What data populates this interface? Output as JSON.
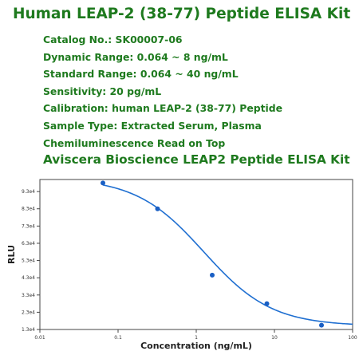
{
  "header": {
    "title": "Human LEAP-2 (38-77) Peptide ELISA Kit",
    "specs": [
      "Catalog No.: SK00007-06",
      "Dynamic Range: 0.064 ~ 8 ng/mL",
      "Standard Range: 0.064 ~ 40 ng/mL",
      "Sensitivity: 20 pg/mL",
      "Calibration: human LEAP-2 (38-77) Peptide",
      "Sample Type: Extracted Serum, Plasma",
      "Chemiluminescence Read on Top"
    ],
    "subtitle": "Aviscera Bioscience LEAP2 Peptide ELISA Kit"
  },
  "colors": {
    "title_green": "#1e7a1e",
    "curve": "#1f6fd1",
    "points": "#1a5fc4",
    "axis": "#444444"
  },
  "chart_data": {
    "type": "scatter",
    "title": "",
    "xlabel": "Concentration (ng/mL)",
    "ylabel": "RLU",
    "x_scale": "log",
    "xlim": [
      0.01,
      100
    ],
    "ylim": [
      13000,
      100000
    ],
    "x_ticks": [
      0.01,
      0.1,
      1,
      10,
      100
    ],
    "x_tick_labels": [
      "0.01",
      "0.1",
      "1",
      "10",
      "100"
    ],
    "y_ticks": [
      13000,
      23000,
      33000,
      43000,
      53000,
      63000,
      73000,
      83000,
      93000
    ],
    "y_tick_labels": [
      "1.3e4",
      "2.3e4",
      "3.3e4",
      "4.3e4",
      "5.3e4",
      "6.3e4",
      "7.3e4",
      "8.3e4",
      "9.3e4"
    ],
    "grid": false,
    "series": [
      {
        "points": [
          {
            "x": 0.064,
            "y": 98000
          },
          {
            "x": 0.32,
            "y": 83000
          },
          {
            "x": 1.6,
            "y": 44500
          },
          {
            "x": 8,
            "y": 28000
          },
          {
            "x": 40,
            "y": 15500
          }
        ],
        "fit_curve": {
          "model": "4PL",
          "top": 101000,
          "bottom": 15000,
          "ec50": 1.25,
          "hill": 1.0
        }
      }
    ]
  }
}
